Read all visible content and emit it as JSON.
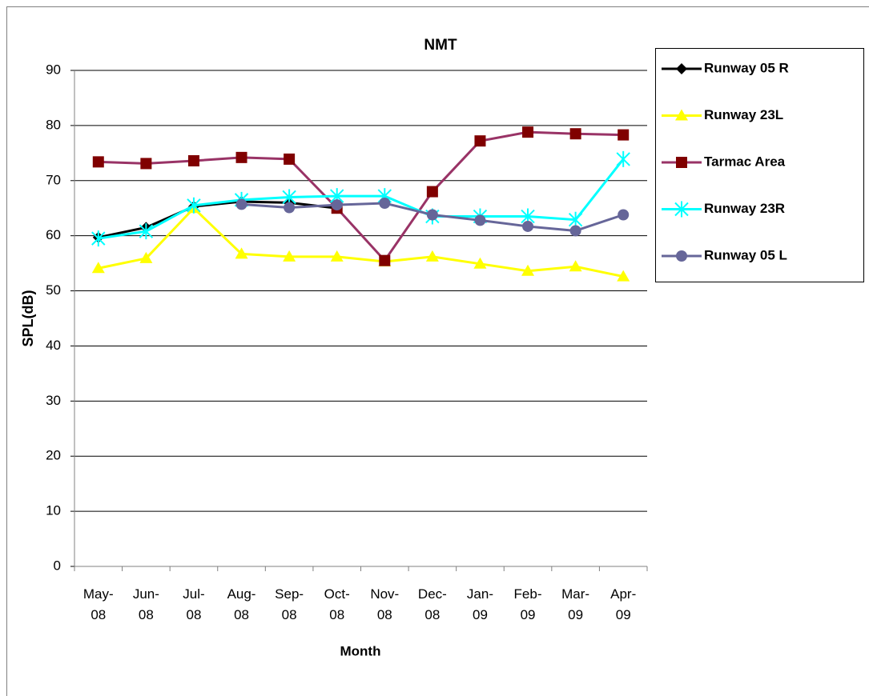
{
  "chart_data": {
    "type": "line",
    "title": "NMT",
    "x_label": "Month",
    "y_label": "SPL(dB)",
    "categories": [
      "May-08",
      "Jun-08",
      "Jul-08",
      "Aug-08",
      "Sep-08",
      "Oct-08",
      "Nov-08",
      "Dec-08",
      "Jan-09",
      "Feb-09",
      "Mar-09",
      "Apr-09"
    ],
    "series": [
      {
        "name": "Runway 05 R",
        "color": "#000000",
        "marker": "diamond",
        "values": [
          59.7,
          61.5,
          65.3,
          66.2,
          66.0,
          65.0,
          null,
          null,
          null,
          null,
          null,
          null
        ]
      },
      {
        "name": "Runway 23L",
        "color": "#ffff00",
        "marker": "triangle",
        "values": [
          54.1,
          55.9,
          65.0,
          56.7,
          56.2,
          56.2,
          55.3,
          56.2,
          54.9,
          53.6,
          54.4,
          52.6
        ]
      },
      {
        "name": "Tarmac Area",
        "color": "#993366",
        "marker": "square",
        "values": [
          73.4,
          73.1,
          73.6,
          74.2,
          73.9,
          65.0,
          55.5,
          68.0,
          77.2,
          78.8,
          78.5,
          78.3
        ]
      },
      {
        "name": "Runway 23R",
        "color": "#00ffff",
        "marker": "star",
        "values": [
          59.5,
          60.8,
          65.5,
          66.5,
          67.0,
          67.2,
          67.2,
          63.5,
          63.5,
          63.5,
          62.9,
          73.9
        ]
      },
      {
        "name": "Runway 05 L",
        "color": "#666699",
        "marker": "circle",
        "values": [
          null,
          null,
          null,
          65.7,
          65.1,
          65.6,
          65.9,
          63.8,
          62.8,
          61.7,
          60.9,
          63.8
        ]
      }
    ],
    "ylim": [
      0,
      90
    ],
    "yticks": [
      0,
      10,
      20,
      30,
      40,
      50,
      60,
      70,
      80,
      90
    ],
    "grid": true,
    "legend": "right"
  }
}
